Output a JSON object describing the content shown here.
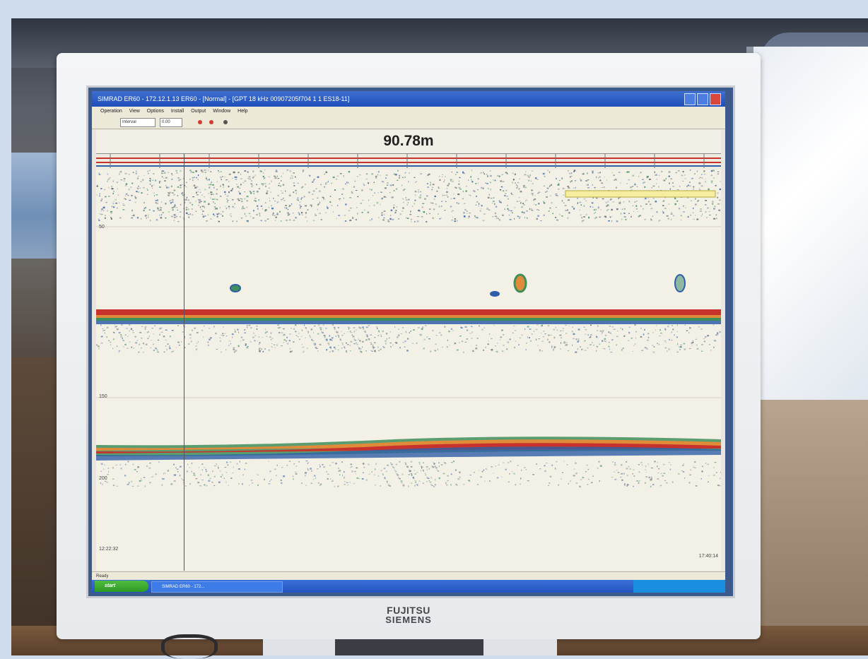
{
  "monitor": {
    "brand_line1": "FUJITSU",
    "brand_line2": "SIEMENS"
  },
  "app": {
    "window_title": "SIMRAD ER60 - 172.12.1.13 ER60 - [Normal] - [GPT 18 kHz 00907205f704 1 1 ES18-11]",
    "menu": [
      "Operation",
      "View",
      "Options",
      "Install",
      "Output",
      "Window",
      "Help"
    ],
    "toolbar": {
      "mode_value": "Interval",
      "range_value": "0.00"
    },
    "depth_readout": "90.78m",
    "axis": {
      "label_50": "50",
      "label_150": "150",
      "label_bottom": "200"
    },
    "time_start": "12:22:32",
    "time_end": "17:40:14",
    "status_ready": "Ready",
    "taskbar": {
      "start_label": "start",
      "task_label": "SIMRAD ER60 - 172..."
    }
  },
  "colors": {
    "echo_strong": "#c8322d",
    "echo_mid": "#e08b3a",
    "echo_low": "#3e8f5a",
    "echo_weak": "#2f5fa8"
  }
}
